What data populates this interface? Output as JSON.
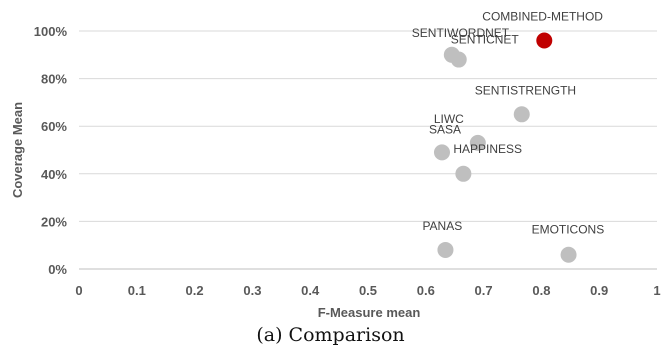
{
  "chart_data": {
    "type": "scatter",
    "xlabel": "F-Measure mean",
    "ylabel": "Coverage Mean",
    "xlim": [
      0,
      1
    ],
    "ylim": [
      0,
      100
    ],
    "x_ticks": [
      "0",
      "0.1",
      "0.2",
      "0.3",
      "0.4",
      "0.5",
      "0.6",
      "0.7",
      "0.8",
      "0.9",
      "1"
    ],
    "y_ticks": [
      "0%",
      "20%",
      "40%",
      "60%",
      "80%",
      "100%"
    ],
    "grid": "horizontal",
    "legend": "none",
    "colors": {
      "default_point": "#bfbfbf",
      "highlight_point": "#c00000",
      "grid": "#d9d9d9",
      "axis_text": "#595959"
    },
    "points": [
      {
        "name": "SENTIWORDNET",
        "x": 0.645,
        "y": 90,
        "highlight": false
      },
      {
        "name": "SENTICNET",
        "x": 0.657,
        "y": 88,
        "highlight": false
      },
      {
        "name": "COMBINED-METHOD",
        "x": 0.805,
        "y": 96,
        "highlight": true
      },
      {
        "name": "SENTISTRENGTH",
        "x": 0.766,
        "y": 65,
        "highlight": false
      },
      {
        "name": "LIWC",
        "x": 0.69,
        "y": 53,
        "highlight": false
      },
      {
        "name": "SASA",
        "x": 0.628,
        "y": 49,
        "highlight": false
      },
      {
        "name": "HAPPINESS",
        "x": 0.665,
        "y": 40,
        "highlight": false
      },
      {
        "name": "PANAS",
        "x": 0.634,
        "y": 8,
        "highlight": false
      },
      {
        "name": "EMOTICONS",
        "x": 0.847,
        "y": 6,
        "highlight": false
      }
    ]
  },
  "caption": "(a) Comparison"
}
